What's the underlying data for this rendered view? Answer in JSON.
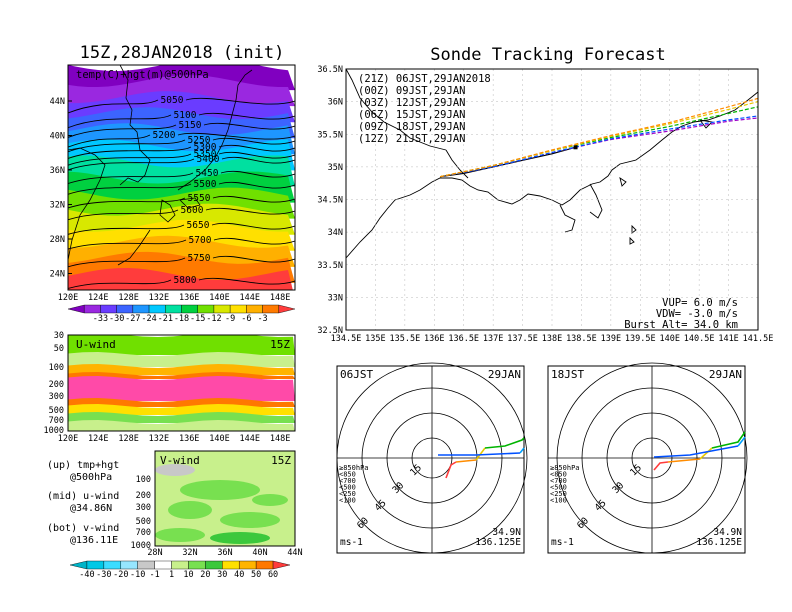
{
  "left_top": {
    "title": "15Z,28JAN2018 (init)",
    "field_label": "temp(C)+hgt(m)@500hPa",
    "lon_ticks": [
      "120E",
      "124E",
      "128E",
      "132E",
      "136E",
      "140E",
      "144E",
      "148E"
    ],
    "lat_ticks": [
      "44N",
      "40N",
      "36N",
      "32N",
      "28N",
      "24N"
    ],
    "height_contours": [
      "5050",
      "5100",
      "5150",
      "5200",
      "5250",
      "5300",
      "5350",
      "5400",
      "5450",
      "5500",
      "5550",
      "5600",
      "5650",
      "5700",
      "5750",
      "5800"
    ],
    "colorbar_ticks": [
      "-33",
      "-30",
      "-27",
      "-24",
      "-21",
      "-18",
      "-15",
      "-12",
      "-9",
      "-6",
      "-3"
    ],
    "colors": [
      "#8000c0",
      "#9a28e0",
      "#6a3cff",
      "#3c64ff",
      "#1e96ff",
      "#00c8ff",
      "#00e0a0",
      "#00d040",
      "#70e000",
      "#d8e800",
      "#ffe000",
      "#ffb000",
      "#ff7a00",
      "#ff3c3c"
    ]
  },
  "u_wind": {
    "label": "U-wind",
    "time": "15Z",
    "y_ticks": [
      "30",
      "50",
      "100",
      "200",
      "300",
      "500",
      "700",
      "1000"
    ],
    "x_ticks": [
      "120E",
      "124E",
      "128E",
      "132E",
      "136E",
      "140E",
      "144E",
      "148E"
    ]
  },
  "v_wind": {
    "label": "V-wind",
    "time": "15Z",
    "y_ticks": [
      "100",
      "200",
      "300",
      "500",
      "700",
      "1000"
    ],
    "x_ticks": [
      "28N",
      "32N",
      "36N",
      "40N",
      "44N"
    ],
    "colorbar_ticks": [
      "-40",
      "-30",
      "-20",
      "-10",
      "-1",
      "1",
      "10",
      "20",
      "30",
      "40",
      "50",
      "60"
    ],
    "colors": [
      "#00b4c8",
      "#00c8e6",
      "#3cdcff",
      "#96e6ff",
      "#c8c8c8",
      "#ffffff",
      "#c8f08c",
      "#78e050",
      "#3cc83c",
      "#ffe000",
      "#ffb400",
      "#ff7800",
      "#ff3c3c"
    ]
  },
  "notes": [
    {
      "line1": "(up) tmp+hgt",
      "line2": "@500hPa"
    },
    {
      "line1": "(mid) u-wind",
      "line2": "@34.86N"
    },
    {
      "line1": "(bot) v-wind",
      "line2": "@136.11E"
    }
  ],
  "forecast": {
    "title": "Sonde Tracking Forecast",
    "lon_ticks": [
      "134.5E",
      "135E",
      "135.5E",
      "136E",
      "136.5E",
      "137E",
      "137.5E",
      "138E",
      "138.5E",
      "139E",
      "139.5E",
      "140E",
      "140.5E",
      "141E",
      "141.5E"
    ],
    "lat_ticks": [
      "36.5N",
      "36N",
      "35.5N",
      "35N",
      "34.5N",
      "34N",
      "33.5N",
      "33N",
      "32.5N"
    ],
    "legend": [
      {
        "text": "(21Z)  06JST,29JAN2018",
        "color": "#000000"
      },
      {
        "text": "(00Z)  09JST,29JAN",
        "color": "#a000c8"
      },
      {
        "text": "(03Z)  12JST,29JAN",
        "color": "#0050ff"
      },
      {
        "text": "(06Z)  15JST,29JAN",
        "color": "#00b400"
      },
      {
        "text": "(09Z)  18JST,29JAN",
        "color": "#e6c800"
      },
      {
        "text": "(12Z)  21JST,29JAN",
        "color": "#ff8c00"
      }
    ],
    "params": [
      "VUP=  6.0 m/s",
      "VDW= -3.0 m/s",
      "Burst Alt= 34.0 km"
    ]
  },
  "hodographs": [
    {
      "time": "06JST",
      "date": "29JAN",
      "lat": "34.9N",
      "lon": "136.125E",
      "unit": "ms-1",
      "ring_labels": [
        "15",
        "30",
        "45",
        "60"
      ]
    },
    {
      "time": "18JST",
      "date": "29JAN",
      "lat": "34.9N",
      "lon": "136.125E",
      "unit": "ms-1",
      "ring_labels": [
        "15",
        "30",
        "45",
        "60"
      ]
    }
  ],
  "level_legend": [
    {
      "text": "≥850hPa",
      "color": "#ff3c3c"
    },
    {
      "text": "<850",
      "color": "#ff8c00"
    },
    {
      "text": "<700",
      "color": "#e6c800"
    },
    {
      "text": "<500",
      "color": "#00b400"
    },
    {
      "text": "<250",
      "color": "#00a0ff"
    },
    {
      "text": "<100",
      "color": "#0050ff"
    }
  ],
  "chart_data": [
    {
      "type": "heatmap",
      "title": "15Z,28JAN2018 (init)",
      "subtitle": "temp(C)+hgt(m)@500hPa",
      "x_range": [
        "120E",
        "150E"
      ],
      "y_range": [
        "22N",
        "46N"
      ],
      "colorbar": [
        -33,
        -30,
        -27,
        -24,
        -21,
        -18,
        -15,
        -12,
        -9,
        -6,
        -3
      ],
      "contours_m": [
        5050,
        5100,
        5150,
        5200,
        5250,
        5300,
        5350,
        5400,
        5450,
        5500,
        5550,
        5600,
        5650,
        5700,
        5750,
        5800
      ]
    },
    {
      "type": "heatmap",
      "title": "U-wind",
      "x_range": [
        "120E",
        "150E"
      ],
      "y_ticks_hPa": [
        30,
        50,
        100,
        200,
        300,
        500,
        700,
        1000
      ]
    },
    {
      "type": "heatmap",
      "title": "V-wind",
      "x_range": [
        "28N",
        "44N"
      ],
      "y_ticks_hPa": [
        100,
        200,
        300,
        500,
        700,
        1000
      ],
      "colorbar": [
        -40,
        -30,
        -20,
        -10,
        -1,
        1,
        10,
        20,
        30,
        40,
        50,
        60
      ]
    },
    {
      "type": "line",
      "title": "Sonde Tracking Forecast",
      "xlim": [
        134.5,
        141.5
      ],
      "ylim": [
        32.5,
        36.5
      ],
      "series": [
        {
          "name": "(21Z)  06JST,29JAN2018",
          "x": [
            136.1,
            136.5,
            137.0,
            137.5,
            138.0,
            138.4
          ],
          "y": [
            34.85,
            34.9,
            35.0,
            35.1,
            35.2,
            35.3
          ]
        },
        {
          "name": "(00Z)  09JST,29JAN",
          "x": [
            136.1,
            137.0,
            138.0,
            139.0,
            140.0,
            141.0,
            141.5
          ],
          "y": [
            34.85,
            35.0,
            35.22,
            35.42,
            35.55,
            35.7,
            35.75
          ]
        },
        {
          "name": "(03Z)  12JST,29JAN",
          "x": [
            136.1,
            137.0,
            138.0,
            139.0,
            140.0,
            141.0,
            141.5
          ],
          "y": [
            34.85,
            35.0,
            35.22,
            35.43,
            35.58,
            35.72,
            35.78
          ]
        },
        {
          "name": "(06Z)  15JST,29JAN",
          "x": [
            136.1,
            137.0,
            138.0,
            139.0,
            140.0,
            141.0,
            141.5
          ],
          "y": [
            34.85,
            35.02,
            35.25,
            35.45,
            35.62,
            35.82,
            35.92
          ]
        },
        {
          "name": "(09Z)  18JST,29JAN",
          "x": [
            136.1,
            137.0,
            138.0,
            139.0,
            140.0,
            141.0,
            141.5
          ],
          "y": [
            34.85,
            35.02,
            35.25,
            35.47,
            35.66,
            35.88,
            36.0
          ]
        },
        {
          "name": "(12Z)  21JST,29JAN",
          "x": [
            136.1,
            137.0,
            138.0,
            139.0,
            140.0,
            141.0,
            141.5
          ],
          "y": [
            34.85,
            35.02,
            35.26,
            35.48,
            35.68,
            35.92,
            36.05
          ]
        }
      ]
    }
  ]
}
